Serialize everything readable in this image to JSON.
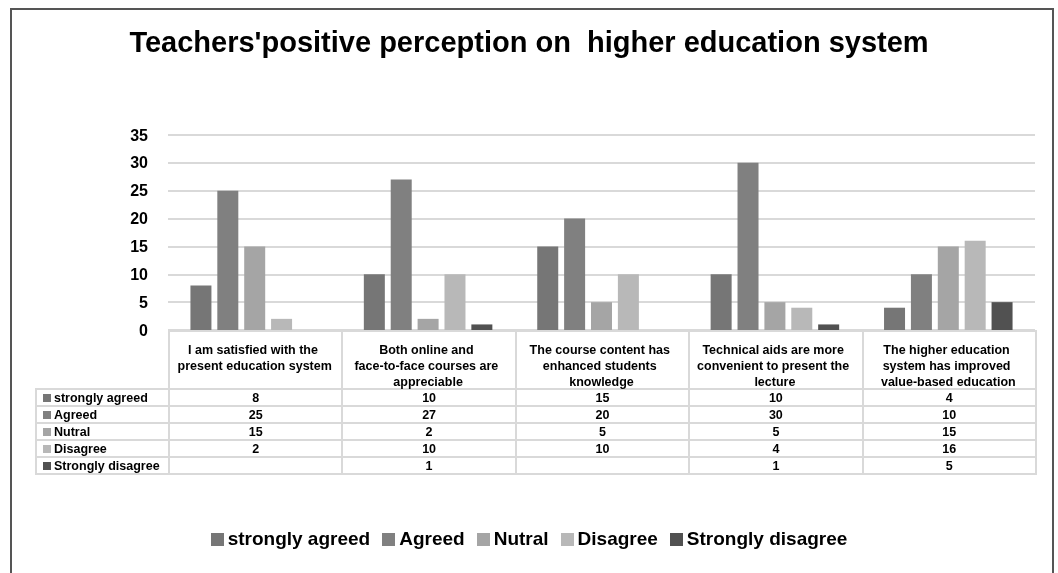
{
  "chart_data": {
    "type": "bar",
    "title": "Teachers'positive perception on  higher education system",
    "categories": [
      "I am satisfied with the present education system",
      "Both online and face-to-face courses are appreciable",
      "The course content has enhanced students knowledge",
      "Technical aids are more convenient to present the lecture",
      "The higher education system has improved value-based education"
    ],
    "series": [
      {
        "name": "strongly agreed",
        "color": "#767676",
        "values": [
          8,
          10,
          15,
          10,
          4
        ]
      },
      {
        "name": "Agreed",
        "color": "#808080",
        "values": [
          25,
          27,
          20,
          30,
          10
        ]
      },
      {
        "name": "Nutral",
        "color": "#a5a5a5",
        "values": [
          15,
          2,
          5,
          5,
          15
        ]
      },
      {
        "name": "Disagree",
        "color": "#b8b8b8",
        "values": [
          2,
          10,
          10,
          4,
          16
        ]
      },
      {
        "name": "Strongly disagree",
        "color": "#515151",
        "values": [
          null,
          1,
          null,
          1,
          5
        ]
      }
    ],
    "ylim": [
      0,
      35
    ],
    "yticks": [
      0,
      5,
      10,
      15,
      20,
      25,
      30,
      35
    ],
    "grid": "y",
    "legend": "bottom",
    "data_labels": true
  }
}
